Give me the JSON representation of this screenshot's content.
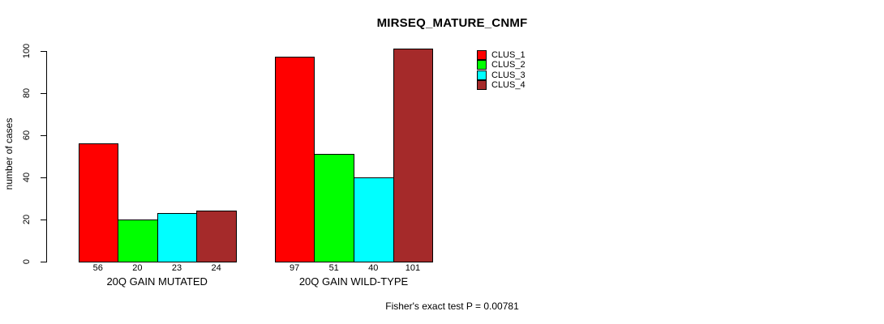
{
  "title": "MIRSEQ_MATURE_CNMF",
  "footer": "Fisher's exact test P = 0.00781",
  "chart_data": {
    "type": "bar",
    "title": "MIRSEQ_MATURE_CNMF",
    "xlabel": "",
    "ylabel": "number of cases",
    "ylim": [
      0,
      100
    ],
    "yticks": [
      0,
      20,
      40,
      60,
      80,
      100
    ],
    "categories": [
      "20Q GAIN MUTATED",
      "20Q GAIN WILD-TYPE"
    ],
    "series": [
      {
        "name": "CLUS_1",
        "color": "#ff0000",
        "values": [
          56,
          97
        ]
      },
      {
        "name": "CLUS_2",
        "color": "#00ff00",
        "values": [
          20,
          51
        ]
      },
      {
        "name": "CLUS_3",
        "color": "#00ffff",
        "values": [
          23,
          40
        ]
      },
      {
        "name": "CLUS_4",
        "color": "#a52a2a",
        "values": [
          24,
          101
        ]
      }
    ],
    "bar_value_labels_shown": true,
    "legend_position": "top-right",
    "grid": false,
    "annotation": "Fisher's exact test P = 0.00781"
  }
}
